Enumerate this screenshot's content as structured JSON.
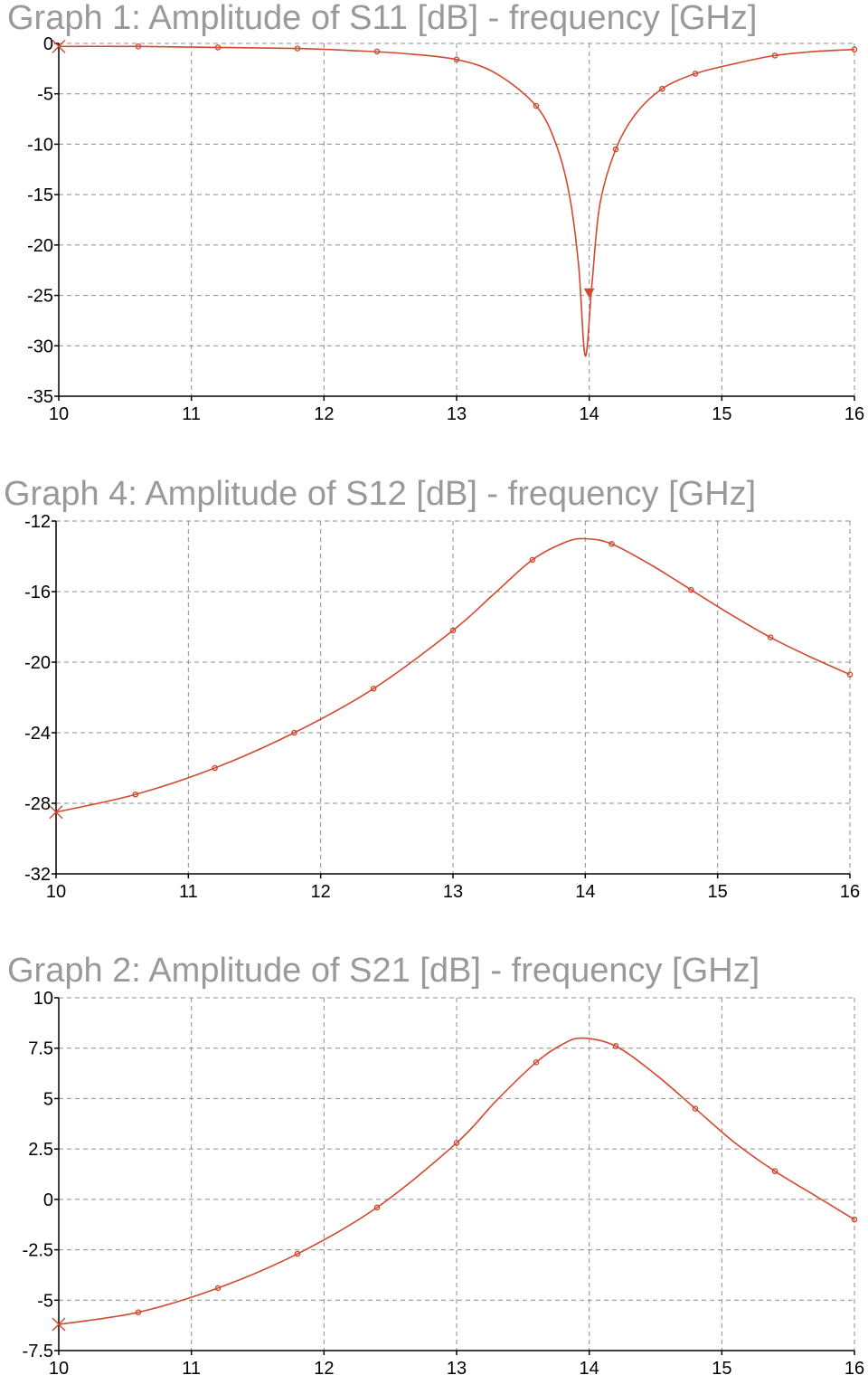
{
  "chart_data": [
    {
      "type": "line",
      "title": "Graph 1: Amplitude of S11 [dB] - frequency [GHz]",
      "xlim": [
        10,
        16
      ],
      "ylim": [
        -35,
        0
      ],
      "xticks": [
        10,
        11,
        12,
        13,
        14,
        15,
        16
      ],
      "yticks": [
        0,
        -5,
        -10,
        -15,
        -20,
        -25,
        -30,
        -35
      ],
      "grid": true,
      "color": "#d04a30",
      "series": [
        {
          "x": [
            10.0,
            10.6,
            11.2,
            11.8,
            12.2,
            12.6,
            13.0,
            13.3,
            13.6,
            13.75,
            13.85,
            13.92,
            13.97,
            14.02,
            14.08,
            14.2,
            14.35,
            14.55,
            14.8,
            15.1,
            15.4,
            15.7,
            16.0
          ],
          "y": [
            -0.3,
            -0.3,
            -0.4,
            -0.5,
            -0.7,
            -1.0,
            -1.6,
            -3.0,
            -6.2,
            -10.0,
            -15.0,
            -22.0,
            -31.0,
            -24.0,
            -16.0,
            -10.5,
            -7.0,
            -4.5,
            -3.0,
            -2.0,
            -1.2,
            -0.8,
            -0.6
          ],
          "markers_x": [
            10.6,
            11.2,
            11.8,
            12.4,
            13.0,
            13.6,
            14.2,
            14.55,
            14.8,
            15.4,
            16.0
          ],
          "markers_y": [
            -0.3,
            -0.4,
            -0.5,
            -0.8,
            -1.6,
            -6.2,
            -10.5,
            -4.5,
            -3.0,
            -1.2,
            -0.6
          ]
        }
      ]
    },
    {
      "type": "line",
      "title": "Graph 4: Amplitude of S12 [dB] - frequency [GHz]",
      "xlim": [
        10,
        16
      ],
      "ylim": [
        -32,
        -12
      ],
      "xticks": [
        10,
        11,
        12,
        13,
        14,
        15,
        16
      ],
      "yticks": [
        -12,
        -16,
        -20,
        -24,
        -28,
        -32
      ],
      "grid": true,
      "color": "#d04a30",
      "series": [
        {
          "x": [
            10.0,
            10.6,
            11.2,
            11.8,
            12.4,
            13.0,
            13.3,
            13.6,
            13.85,
            14.0,
            14.2,
            14.5,
            14.8,
            15.1,
            15.4,
            15.7,
            16.0
          ],
          "y": [
            -28.5,
            -27.5,
            -26.0,
            -24.0,
            -21.5,
            -18.2,
            -16.2,
            -14.2,
            -13.2,
            -13.0,
            -13.3,
            -14.5,
            -15.9,
            -17.3,
            -18.6,
            -19.7,
            -20.7
          ],
          "markers_x": [
            10.6,
            11.2,
            11.8,
            12.4,
            13.0,
            13.6,
            14.2,
            14.8,
            15.4,
            16.0
          ],
          "markers_y": [
            -27.5,
            -26.0,
            -24.0,
            -21.5,
            -18.2,
            -14.2,
            -13.3,
            -15.9,
            -18.6,
            -20.7
          ]
        }
      ]
    },
    {
      "type": "line",
      "title": "Graph 2: Amplitude of S21 [dB] - frequency [GHz]",
      "xlim": [
        10,
        16
      ],
      "ylim": [
        -7.5,
        10
      ],
      "xticks": [
        10,
        11,
        12,
        13,
        14,
        15,
        16
      ],
      "yticks": [
        10,
        7.5,
        5,
        2.5,
        0,
        -2.5,
        -5,
        -7.5
      ],
      "grid": true,
      "color": "#d04a30",
      "series": [
        {
          "x": [
            10.0,
            10.6,
            11.2,
            11.8,
            12.4,
            13.0,
            13.3,
            13.6,
            13.8,
            13.95,
            14.2,
            14.5,
            14.8,
            15.1,
            15.4,
            15.7,
            16.0
          ],
          "y": [
            -6.2,
            -5.6,
            -4.4,
            -2.7,
            -0.4,
            2.8,
            4.9,
            6.8,
            7.7,
            8.0,
            7.6,
            6.2,
            4.5,
            2.8,
            1.4,
            0.2,
            -1.0
          ],
          "markers_x": [
            10.6,
            11.2,
            11.8,
            12.4,
            13.0,
            13.6,
            14.2,
            14.8,
            15.4,
            16.0
          ],
          "markers_y": [
            -5.6,
            -4.4,
            -2.7,
            -0.4,
            2.8,
            6.8,
            7.6,
            4.5,
            1.4,
            -1.0
          ]
        }
      ]
    }
  ]
}
